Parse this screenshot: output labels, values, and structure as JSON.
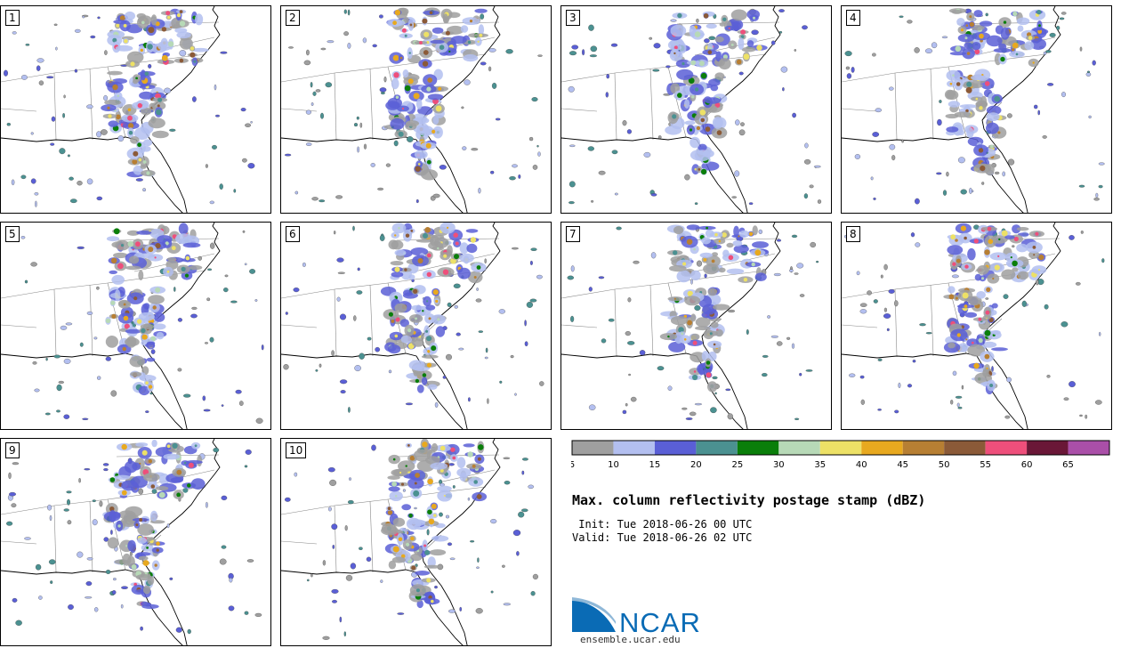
{
  "members": [
    "1",
    "2",
    "3",
    "4",
    "5",
    "6",
    "7",
    "8",
    "9",
    "10"
  ],
  "colorbar": {
    "colors": [
      "#9f9f9f",
      "#b3bff0",
      "#5a5fd6",
      "#4b9191",
      "#0a7e0a",
      "#b7d9b7",
      "#ede166",
      "#e8a91f",
      "#b77f33",
      "#8b5a38",
      "#ee4f7b",
      "#6a1737",
      "#aa4fa8"
    ],
    "ticks": [
      "5",
      "10",
      "15",
      "20",
      "25",
      "30",
      "35",
      "40",
      "45",
      "50",
      "55",
      "60",
      "65"
    ]
  },
  "title": "Max. column reflectivity postage stamp (dBZ)",
  "init": " Init: Tue 2018-06-26 00 UTC",
  "valid": "Valid: Tue 2018-06-26 02 UTC",
  "logo": {
    "text": "NCAR",
    "url": "ensemble.ucar.edu",
    "color": "#0a6bb5"
  }
}
